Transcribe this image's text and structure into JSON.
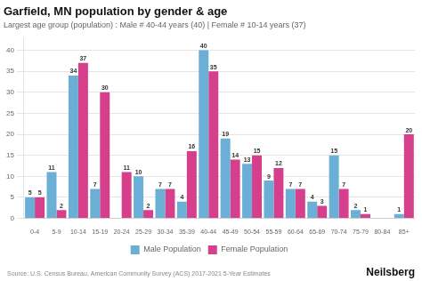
{
  "chart_data": {
    "type": "bar",
    "title": "Garfield, MN population by gender & age",
    "subtitle": "Largest age group (population) : Male # 40-44 years (40) | Female # 10-14 years (37)",
    "annotations": [
      "Source: U.S. Census Bureau, American Community Survey (ACS) 2017-2021 5-Year Estimates",
      "Neilsberg"
    ],
    "categories": [
      "0-4",
      "5-9",
      "10-14",
      "15-19",
      "20-24",
      "25-29",
      "30-34",
      "35-39",
      "40-44",
      "45-49",
      "50-54",
      "55-59",
      "60-64",
      "65-69",
      "70-74",
      "75-79",
      "80-84",
      "85+"
    ],
    "series": [
      {
        "name": "Male Population",
        "color": "#6baed6",
        "values": [
          5,
          11,
          34,
          7,
          0,
          10,
          7,
          4,
          40,
          19,
          13,
          9,
          7,
          4,
          15,
          2,
          0,
          1
        ]
      },
      {
        "name": "Female Population",
        "color": "#d63f8c",
        "values": [
          5,
          2,
          37,
          30,
          11,
          2,
          7,
          16,
          35,
          14,
          15,
          12,
          7,
          3,
          7,
          1,
          0,
          20
        ]
      }
    ],
    "ylim": [
      0,
      43
    ],
    "yticks": [
      0,
      5,
      10,
      15,
      20,
      25,
      30,
      35,
      40
    ],
    "grid": true,
    "legend": "bottom",
    "data_labels": true
  }
}
